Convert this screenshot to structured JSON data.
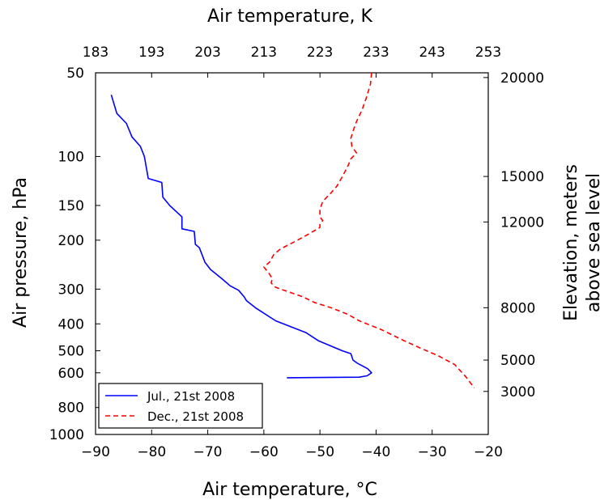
{
  "chart_data": {
    "type": "line",
    "xlabel": "Air temperature, °C",
    "x2label": "Air temperature, K",
    "ylabel": "Air pressure, hPa",
    "y2label_lines": [
      "Elevation, meters",
      "above sea level"
    ],
    "xlim": [
      -90,
      -20
    ],
    "x2lim": [
      183,
      253
    ],
    "ylim": [
      1000,
      50
    ],
    "y_scale": "log",
    "x_ticks": [
      "−90",
      "−80",
      "−70",
      "−60",
      "−50",
      "−40",
      "−30",
      "−20"
    ],
    "x_tick_values": [
      -90,
      -80,
      -70,
      -60,
      -50,
      -40,
      -30,
      -20
    ],
    "x2_ticks": [
      "183",
      "193",
      "203",
      "213",
      "223",
      "233",
      "243",
      "253"
    ],
    "x2_tick_values": [
      183,
      193,
      203,
      213,
      223,
      233,
      243,
      253
    ],
    "y_ticks": [
      "50",
      "100",
      "150",
      "200",
      "300",
      "400",
      "500",
      "600",
      "800",
      "1000"
    ],
    "y_tick_values": [
      50,
      100,
      150,
      200,
      300,
      400,
      500,
      600,
      800,
      1000
    ],
    "y2_ticks": [
      "20000",
      "15000",
      "12000",
      "8000",
      "5000",
      "3000"
    ],
    "y2_tick_pressures": [
      52,
      118,
      172,
      350,
      540,
      700
    ],
    "legend_position": "bottom-left",
    "grid": false,
    "series": [
      {
        "name": "Jul., 21st 2008",
        "color": "#0000ff",
        "style": "solid",
        "points": [
          [
            -87.2,
            60
          ],
          [
            -86.2,
            70
          ],
          [
            -84.5,
            76
          ],
          [
            -83.5,
            85
          ],
          [
            -82,
            92
          ],
          [
            -81.3,
            100
          ],
          [
            -80.6,
            120
          ],
          [
            -78.2,
            124
          ],
          [
            -78,
            140
          ],
          [
            -76.8,
            150
          ],
          [
            -74.6,
            165
          ],
          [
            -74.6,
            182
          ],
          [
            -72.4,
            186
          ],
          [
            -72.2,
            207
          ],
          [
            -71.5,
            213
          ],
          [
            -70.5,
            240
          ],
          [
            -69.5,
            255
          ],
          [
            -67.5,
            275
          ],
          [
            -66,
            292
          ],
          [
            -64.5,
            303
          ],
          [
            -63.5,
            320
          ],
          [
            -63.1,
            330
          ],
          [
            -61.5,
            350
          ],
          [
            -57.9,
            390
          ],
          [
            -52.5,
            430
          ],
          [
            -50.3,
            460
          ],
          [
            -46,
            500
          ],
          [
            -44.5,
            512
          ],
          [
            -44.1,
            540
          ],
          [
            -43.3,
            555
          ],
          [
            -41.5,
            580
          ],
          [
            -40.8,
            600
          ],
          [
            -41.6,
            615
          ],
          [
            -43,
            622
          ],
          [
            -55.9,
            625
          ]
        ]
      },
      {
        "name": "Dec., 21st 2008",
        "color": "#ff0000",
        "style": "dashed",
        "points": [
          [
            -40.8,
            50
          ],
          [
            -41,
            55
          ],
          [
            -41.8,
            62
          ],
          [
            -42.5,
            68
          ],
          [
            -43.5,
            75
          ],
          [
            -44,
            80
          ],
          [
            -44.5,
            86
          ],
          [
            -44.3,
            92
          ],
          [
            -43.5,
            97
          ],
          [
            -44.5,
            102
          ],
          [
            -45,
            108
          ],
          [
            -46,
            118
          ],
          [
            -47,
            128
          ],
          [
            -48,
            135
          ],
          [
            -49.5,
            145
          ],
          [
            -50,
            155
          ],
          [
            -50,
            165
          ],
          [
            -49.5,
            170
          ],
          [
            -50,
            175
          ],
          [
            -50,
            180
          ],
          [
            -52,
            190
          ],
          [
            -54,
            200
          ],
          [
            -57,
            215
          ],
          [
            -58.2,
            225
          ],
          [
            -59,
            240
          ],
          [
            -60,
            250
          ],
          [
            -59,
            265
          ],
          [
            -58.5,
            275
          ],
          [
            -58.7,
            285
          ],
          [
            -58,
            295
          ],
          [
            -57,
            300
          ],
          [
            -56,
            305
          ],
          [
            -53,
            320
          ],
          [
            -51,
            335
          ],
          [
            -48,
            350
          ],
          [
            -45,
            370
          ],
          [
            -43,
            390
          ],
          [
            -39,
            420
          ],
          [
            -35,
            460
          ],
          [
            -32,
            490
          ],
          [
            -29,
            520
          ],
          [
            -26,
            560
          ],
          [
            -24,
            620
          ],
          [
            -22.5,
            680
          ]
        ]
      }
    ]
  }
}
